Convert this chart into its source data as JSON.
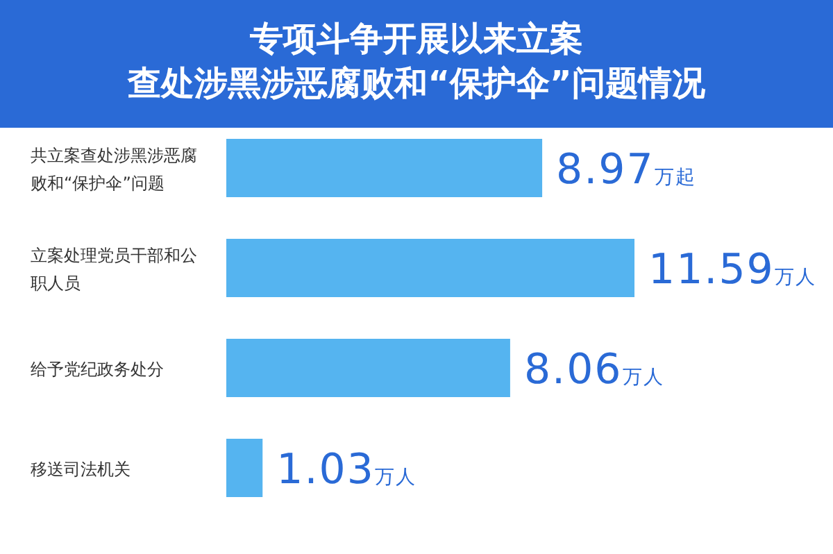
{
  "chart_data": {
    "type": "bar",
    "orientation": "horizontal",
    "title": "专项斗争开展以来立案查处涉黑涉恶腐败和“保护伞”问题情况",
    "categories": [
      "共立案查处涉黑涉恶腐败和“保护伞”问题",
      "立案处理党员干部和公职人员",
      "给予党纪政务处分",
      "移送司法机关"
    ],
    "values": [
      8.97,
      11.59,
      8.06,
      1.03
    ],
    "color": "#55b4f0",
    "value_labels": [
      "8.97万起",
      "11.59万人",
      "8.06万人",
      "1.03万人"
    ]
  }
}
